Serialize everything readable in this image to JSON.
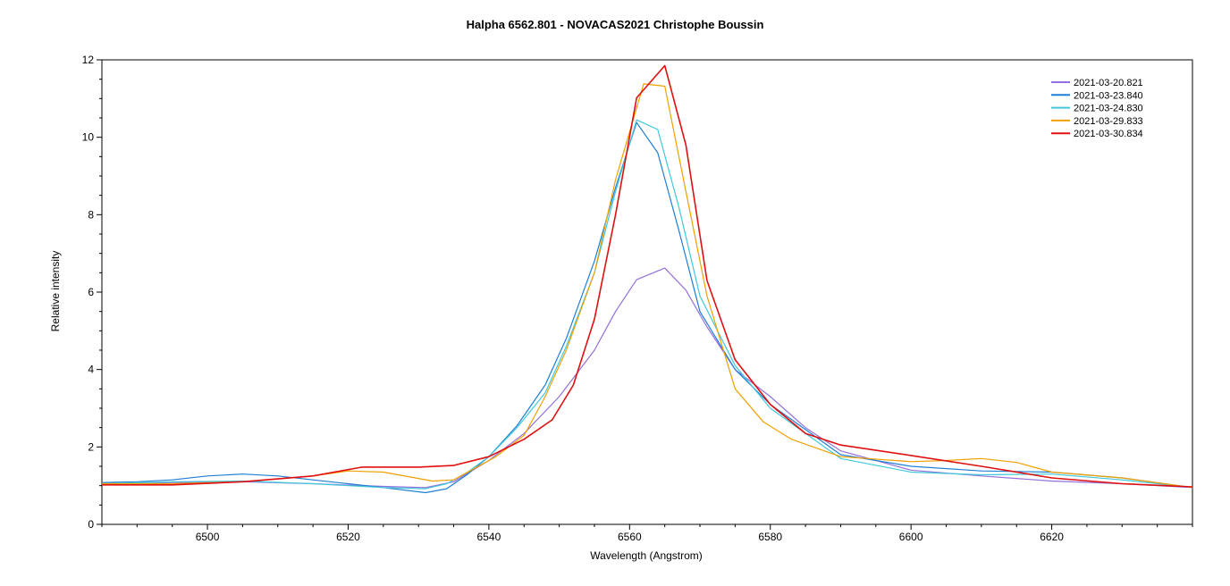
{
  "chart_data": {
    "type": "line",
    "title": "Halpha 6562.801 - NOVACAS2021   Christophe Boussin",
    "xlabel": "Wavelength (Angstrom)",
    "ylabel": "Relative intensity",
    "xlim": [
      6485,
      6640
    ],
    "ylim": [
      0,
      12
    ],
    "x_ticks": [
      6500,
      6520,
      6540,
      6560,
      6580,
      6600,
      6620
    ],
    "y_ticks": [
      0,
      2,
      4,
      6,
      8,
      10,
      12
    ],
    "grid": false,
    "legend_position": "top-right",
    "series": [
      {
        "name": "2021-03-20.821",
        "color": "#9370DB",
        "x": [
          6485,
          6495,
          6505,
          6515,
          6525,
          6531,
          6535,
          6540,
          6545,
          6550,
          6555,
          6558,
          6561,
          6565,
          6568,
          6571,
          6575,
          6580,
          6585,
          6590,
          6600,
          6610,
          6620,
          6630,
          6640
        ],
        "y": [
          1.05,
          1.08,
          1.1,
          1.05,
          0.98,
          0.95,
          1.1,
          1.65,
          2.35,
          3.3,
          4.5,
          5.5,
          6.32,
          6.62,
          6.05,
          5.1,
          4.0,
          3.3,
          2.5,
          1.9,
          1.4,
          1.25,
          1.12,
          1.05,
          0.95
        ]
      },
      {
        "name": "2021-03-23.840",
        "color": "#1E7FD6",
        "x": [
          6485,
          6490,
          6495,
          6500,
          6505,
          6510,
          6515,
          6520,
          6525,
          6531,
          6534,
          6537,
          6540,
          6544,
          6548,
          6551,
          6555,
          6558,
          6561,
          6564,
          6567,
          6570,
          6575,
          6580,
          6590,
          6600,
          6610,
          6620,
          6630,
          6640
        ],
        "y": [
          1.08,
          1.1,
          1.15,
          1.25,
          1.3,
          1.25,
          1.15,
          1.05,
          0.95,
          0.82,
          0.92,
          1.3,
          1.75,
          2.55,
          3.6,
          4.8,
          6.8,
          8.7,
          10.38,
          9.6,
          7.6,
          5.5,
          4.0,
          3.1,
          1.8,
          1.5,
          1.38,
          1.35,
          1.2,
          0.95
        ]
      },
      {
        "name": "2021-03-24.830",
        "color": "#40C8DC",
        "x": [
          6485,
          6495,
          6505,
          6515,
          6525,
          6531,
          6534,
          6537,
          6540,
          6544,
          6548,
          6551,
          6555,
          6558,
          6561,
          6564,
          6567,
          6570,
          6575,
          6580,
          6590,
          6600,
          6610,
          6620,
          6630,
          6640
        ],
        "y": [
          1.05,
          1.1,
          1.12,
          1.05,
          0.95,
          0.92,
          1.05,
          1.35,
          1.75,
          2.5,
          3.4,
          4.6,
          6.5,
          8.6,
          10.45,
          10.2,
          8.2,
          5.9,
          4.1,
          3.0,
          1.7,
          1.35,
          1.28,
          1.3,
          1.15,
          0.95
        ]
      },
      {
        "name": "2021-03-29.833",
        "color": "#F0A000",
        "x": [
          6485,
          6495,
          6505,
          6515,
          6520,
          6525,
          6532,
          6535,
          6538,
          6541,
          6545,
          6548,
          6551,
          6555,
          6558,
          6562,
          6565,
          6568,
          6571,
          6575,
          6579,
          6583,
          6590,
          6600,
          6605,
          6610,
          6615,
          6620,
          6630,
          6640
        ],
        "y": [
          1.05,
          1.05,
          1.1,
          1.25,
          1.38,
          1.35,
          1.12,
          1.15,
          1.45,
          1.75,
          2.3,
          3.3,
          4.5,
          6.5,
          8.9,
          11.38,
          11.32,
          8.6,
          5.9,
          3.5,
          2.65,
          2.2,
          1.75,
          1.62,
          1.65,
          1.7,
          1.6,
          1.35,
          1.2,
          0.95
        ]
      },
      {
        "name": "2021-03-30.834",
        "color": "#E01010",
        "x": [
          6485,
          6495,
          6505,
          6515,
          6522,
          6530,
          6535,
          6540,
          6545,
          6549,
          6552,
          6555,
          6558,
          6561,
          6565,
          6568,
          6571,
          6575,
          6580,
          6585,
          6590,
          6600,
          6610,
          6620,
          6630,
          6640
        ],
        "y": [
          1.02,
          1.02,
          1.1,
          1.25,
          1.48,
          1.48,
          1.52,
          1.75,
          2.2,
          2.7,
          3.6,
          5.3,
          8.0,
          11.02,
          11.85,
          9.8,
          6.3,
          4.25,
          3.1,
          2.35,
          2.05,
          1.78,
          1.5,
          1.2,
          1.05,
          0.97
        ]
      }
    ]
  }
}
